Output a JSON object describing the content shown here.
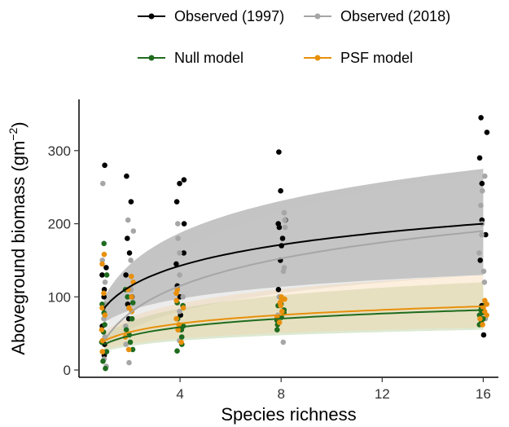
{
  "chart_data": {
    "type": "scatter",
    "xlabel": "Species richness",
    "ylabel": "Aboveground biomass (gm",
    "ylabel_sup": "−2",
    "ylabel_close": ")",
    "xlim": [
      0,
      16.6
    ],
    "ylim": [
      -10,
      370
    ],
    "x_ticks": [
      4,
      8,
      12,
      16
    ],
    "x_tick_labels": [
      "4",
      "8",
      "12",
      "16"
    ],
    "y_ticks": [
      0,
      100,
      200,
      300
    ],
    "y_tick_labels": [
      "0",
      "100",
      "200",
      "300"
    ],
    "grid": false,
    "legend_position": "top",
    "series": [
      {
        "name": "Observed (1997)",
        "color": "#000000",
        "points": [
          [
            1,
            20
          ],
          [
            1,
            35
          ],
          [
            1,
            60
          ],
          [
            1,
            85
          ],
          [
            1,
            100
          ],
          [
            1,
            110
          ],
          [
            1,
            130
          ],
          [
            1,
            140
          ],
          [
            1,
            280
          ],
          [
            2,
            70
          ],
          [
            2,
            90
          ],
          [
            2,
            100
          ],
          [
            2,
            110
          ],
          [
            2,
            130
          ],
          [
            2,
            160
          ],
          [
            2,
            180
          ],
          [
            2,
            230
          ],
          [
            2,
            265
          ],
          [
            4,
            75
          ],
          [
            4,
            100
          ],
          [
            4,
            115
          ],
          [
            4,
            145
          ],
          [
            4,
            160
          ],
          [
            4,
            200
          ],
          [
            4,
            230
          ],
          [
            4,
            255
          ],
          [
            4,
            260
          ],
          [
            8,
            110
          ],
          [
            8,
            150
          ],
          [
            8,
            170
          ],
          [
            8,
            180
          ],
          [
            8,
            195
          ],
          [
            8,
            200
          ],
          [
            8,
            205
          ],
          [
            8,
            245
          ],
          [
            8,
            298
          ],
          [
            16,
            48
          ],
          [
            16,
            88
          ],
          [
            16,
            150
          ],
          [
            16,
            185
          ],
          [
            16,
            205
          ],
          [
            16,
            255
          ],
          [
            16,
            290
          ],
          [
            16,
            325
          ],
          [
            16,
            345
          ]
        ],
        "fit": {
          "y_at_1": 85,
          "y_at_16": 200
        },
        "band": {
          "lower_at_1": 65,
          "upper_at_1": 100,
          "lower_at_16": 130,
          "upper_at_16": 275
        },
        "band_color": "#555555"
      },
      {
        "name": "Observed (2018)",
        "color": "#a6a6a6",
        "points": [
          [
            1,
            5
          ],
          [
            1,
            15
          ],
          [
            1,
            25
          ],
          [
            1,
            45
          ],
          [
            1,
            70
          ],
          [
            1,
            90
          ],
          [
            1,
            120
          ],
          [
            1,
            150
          ],
          [
            1,
            255
          ],
          [
            2,
            10
          ],
          [
            2,
            35
          ],
          [
            2,
            60
          ],
          [
            2,
            85
          ],
          [
            2,
            110
          ],
          [
            2,
            150
          ],
          [
            2,
            190
          ],
          [
            2,
            205
          ],
          [
            4,
            40
          ],
          [
            4,
            55
          ],
          [
            4,
            80
          ],
          [
            4,
            100
          ],
          [
            4,
            130
          ],
          [
            4,
            160
          ],
          [
            4,
            180
          ],
          [
            4,
            200
          ],
          [
            8,
            38
          ],
          [
            8,
            75
          ],
          [
            8,
            100
          ],
          [
            8,
            135
          ],
          [
            8,
            140
          ],
          [
            8,
            195
          ],
          [
            8,
            205
          ],
          [
            8,
            215
          ],
          [
            16,
            70
          ],
          [
            16,
            120
          ],
          [
            16,
            135
          ],
          [
            16,
            160
          ],
          [
            16,
            185
          ],
          [
            16,
            200
          ],
          [
            16,
            225
          ],
          [
            16,
            245
          ],
          [
            16,
            265
          ]
        ],
        "fit": {
          "y_at_1": 40,
          "y_at_16": 190
        },
        "band": {
          "lower_at_1": 30,
          "upper_at_1": 55,
          "lower_at_16": 130,
          "upper_at_16": 270
        },
        "band_color": "#c8c8c8"
      },
      {
        "name": "Null model",
        "color": "#1f6b1f",
        "points": [
          [
            1,
            2
          ],
          [
            1,
            12
          ],
          [
            1,
            25
          ],
          [
            1,
            38
          ],
          [
            1,
            52
          ],
          [
            1,
            62
          ],
          [
            1,
            78
          ],
          [
            1,
            90
          ],
          [
            1,
            130
          ],
          [
            1,
            173
          ],
          [
            2,
            28
          ],
          [
            2,
            38
          ],
          [
            2,
            48
          ],
          [
            2,
            55
          ],
          [
            2,
            70
          ],
          [
            2,
            92
          ],
          [
            2,
            100
          ],
          [
            2,
            110
          ],
          [
            4,
            26
          ],
          [
            4,
            35
          ],
          [
            4,
            45
          ],
          [
            4,
            55
          ],
          [
            4,
            60
          ],
          [
            4,
            70
          ],
          [
            4,
            88
          ],
          [
            4,
            92
          ],
          [
            8,
            55
          ],
          [
            8,
            62
          ],
          [
            8,
            68
          ],
          [
            8,
            72
          ],
          [
            8,
            78
          ],
          [
            8,
            82
          ],
          [
            8,
            88
          ],
          [
            8,
            90
          ],
          [
            16,
            62
          ],
          [
            16,
            65
          ],
          [
            16,
            70
          ],
          [
            16,
            75
          ],
          [
            16,
            78
          ],
          [
            16,
            82
          ],
          [
            16,
            85
          ],
          [
            16,
            90
          ]
        ],
        "fit": {
          "y_at_1": 35,
          "y_at_16": 82
        },
        "band": {
          "lower_at_1": 25,
          "upper_at_1": 48,
          "lower_at_16": 55,
          "upper_at_16": 120
        },
        "band_color": "#9fbf7f"
      },
      {
        "name": "PSF model",
        "color": "#e8900c",
        "points": [
          [
            1,
            25
          ],
          [
            1,
            40
          ],
          [
            1,
            55
          ],
          [
            1,
            75
          ],
          [
            1,
            85
          ],
          [
            1,
            105
          ],
          [
            1,
            145
          ],
          [
            1,
            158
          ],
          [
            2,
            28
          ],
          [
            2,
            45
          ],
          [
            2,
            80
          ],
          [
            2,
            85
          ],
          [
            2,
            100
          ],
          [
            2,
            110
          ],
          [
            2,
            120
          ],
          [
            2,
            128
          ],
          [
            4,
            38
          ],
          [
            4,
            55
          ],
          [
            4,
            62
          ],
          [
            4,
            70
          ],
          [
            4,
            85
          ],
          [
            4,
            95
          ],
          [
            4,
            105
          ],
          [
            4,
            110
          ],
          [
            8,
            65
          ],
          [
            8,
            72
          ],
          [
            8,
            80
          ],
          [
            8,
            88
          ],
          [
            8,
            92
          ],
          [
            8,
            95
          ],
          [
            8,
            97
          ],
          [
            8,
            100
          ],
          [
            16,
            62
          ],
          [
            16,
            70
          ],
          [
            16,
            75
          ],
          [
            16,
            80
          ],
          [
            16,
            85
          ],
          [
            16,
            90
          ],
          [
            16,
            95
          ]
        ],
        "fit": {
          "y_at_1": 40,
          "y_at_16": 87
        },
        "band": {
          "lower_at_1": 28,
          "upper_at_1": 52,
          "lower_at_16": 58,
          "upper_at_16": 130
        },
        "band_color": "#f5d0a0"
      }
    ]
  }
}
